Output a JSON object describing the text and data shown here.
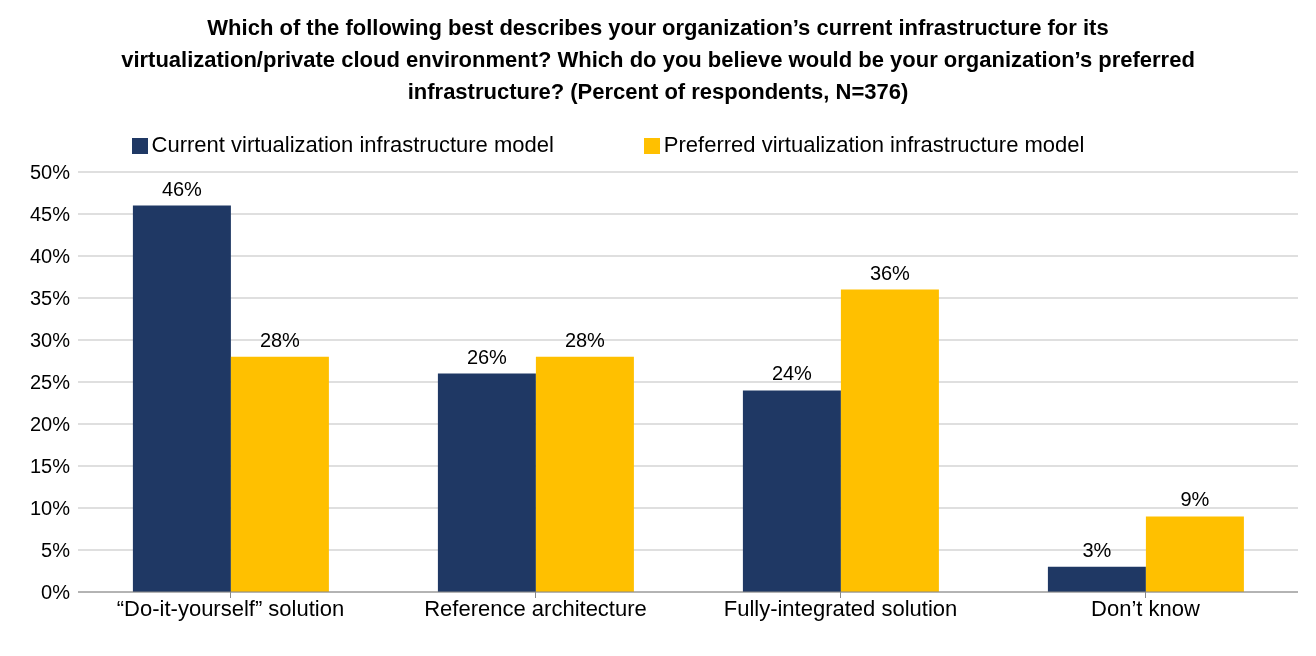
{
  "chart_data": {
    "type": "bar",
    "title": "Which of the following best describes your organization’s current infrastructure for its virtualization/private cloud environment?  Which do you believe would be your organization’s preferred infrastructure? (Percent of respondents, N=376)",
    "categories": [
      "“Do-it-yourself” solution",
      "Reference architecture",
      "Fully-integrated solution",
      "Don’t know"
    ],
    "series": [
      {
        "name": "Current virtualization infrastructure model",
        "color": "#1f3864",
        "values": [
          46,
          26,
          24,
          3
        ],
        "value_labels": [
          "46%",
          "26%",
          "24%",
          "3%"
        ]
      },
      {
        "name": "Preferred virtualization infrastructure model",
        "color": "#ffc000",
        "values": [
          28,
          28,
          36,
          9
        ],
        "value_labels": [
          "28%",
          "28%",
          "36%",
          "9%"
        ]
      }
    ],
    "ylim": [
      0,
      50
    ],
    "yticks": [
      {
        "value": 0,
        "label": "0%"
      },
      {
        "value": 5,
        "label": "5%"
      },
      {
        "value": 10,
        "label": "10%"
      },
      {
        "value": 15,
        "label": "15%"
      },
      {
        "value": 20,
        "label": "20%"
      },
      {
        "value": 25,
        "label": "25%"
      },
      {
        "value": 30,
        "label": "30%"
      },
      {
        "value": 35,
        "label": "35%"
      },
      {
        "value": 40,
        "label": "40%"
      },
      {
        "value": 45,
        "label": "45%"
      },
      {
        "value": 50,
        "label": "50%"
      }
    ],
    "grid": "y",
    "legend": "top"
  }
}
